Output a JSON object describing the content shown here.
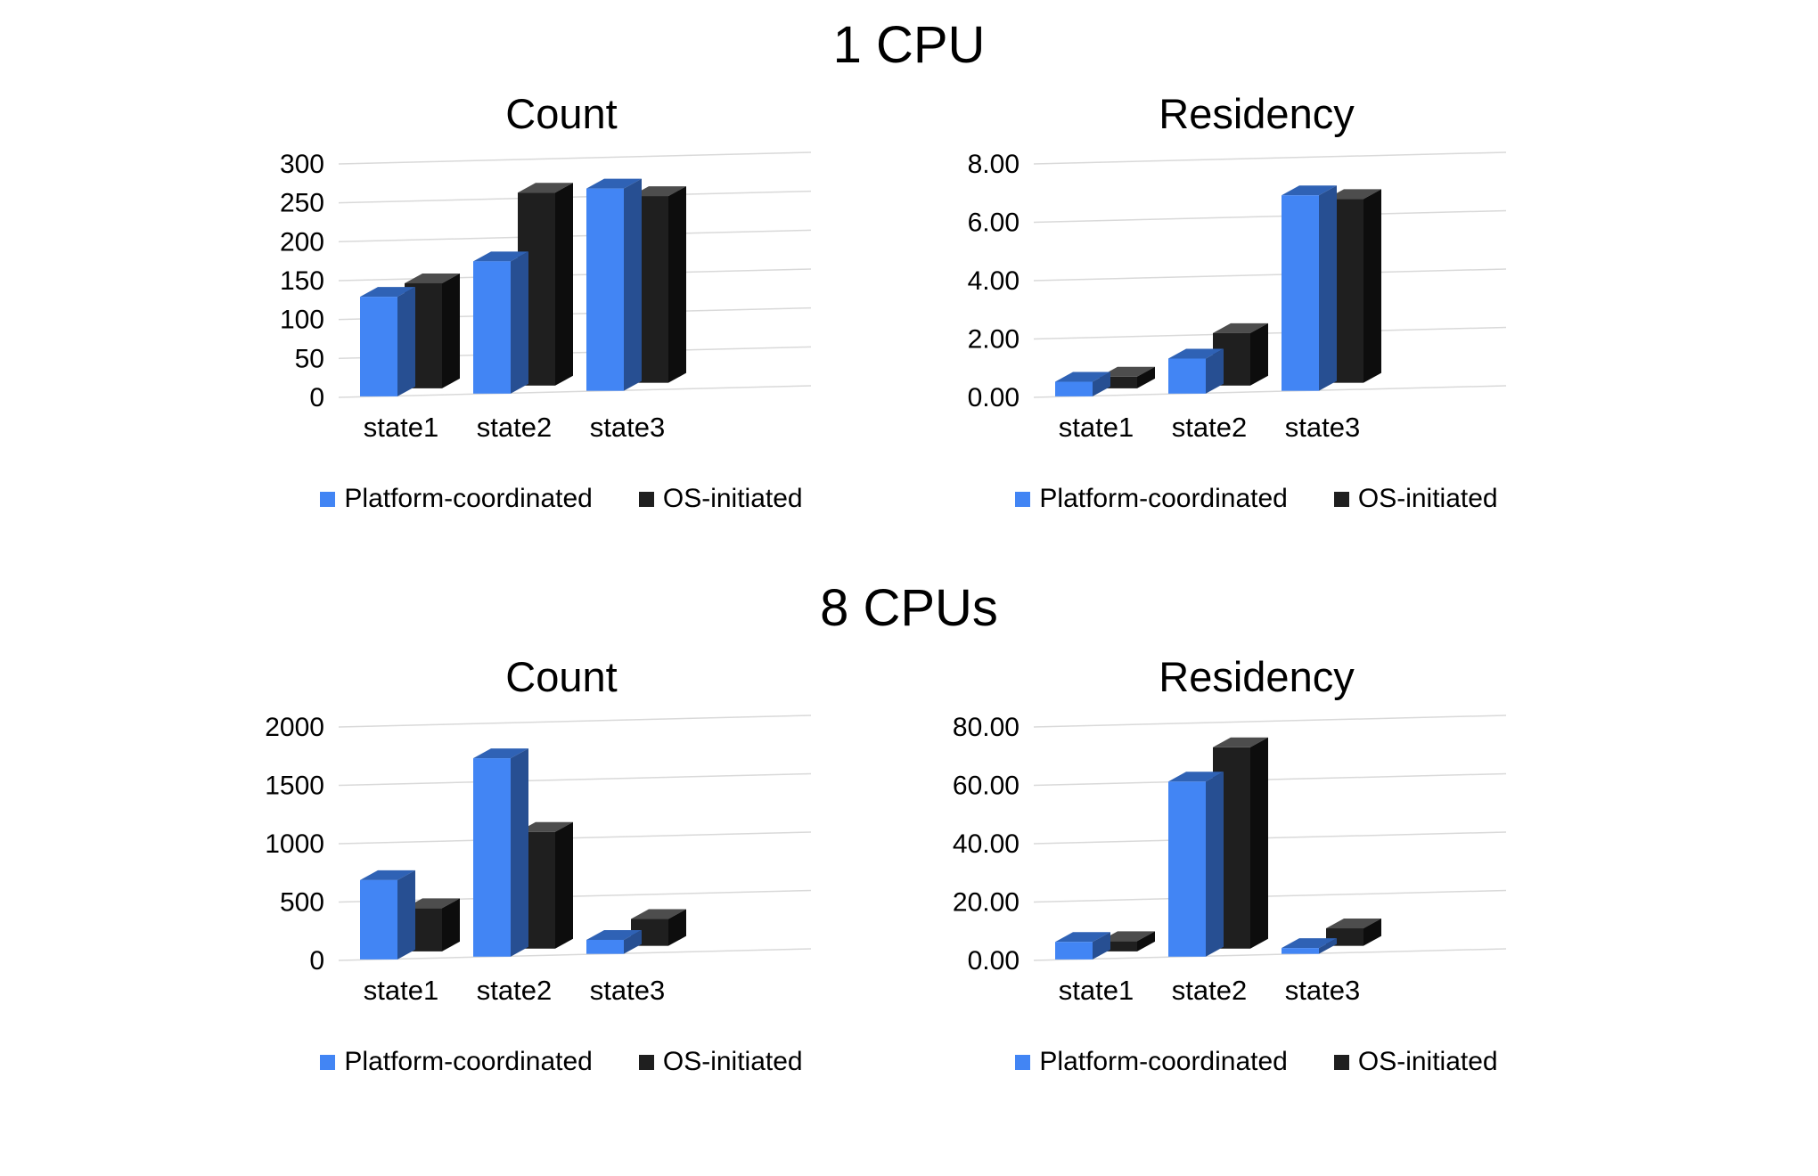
{
  "section_titles": [
    "1 CPU",
    "8 CPUs"
  ],
  "palette": {
    "platform": {
      "front": "#4285f4",
      "top": "#2f62b5",
      "side": "#274f92"
    },
    "os": {
      "front": "#1f1f1f",
      "top": "#4d4d4d",
      "side": "#0d0d0d"
    }
  },
  "chart_data": [
    {
      "type": "bar",
      "group": "1 CPU",
      "title": "Count",
      "categories": [
        "state1",
        "state2",
        "state3"
      ],
      "series": [
        {
          "name": "Platform-coordinated",
          "palette": "platform",
          "color": "#4285f4",
          "values": [
            128,
            170,
            260
          ]
        },
        {
          "name": "OS-initiated",
          "palette": "os",
          "color": "#1f1f1f",
          "values": [
            135,
            248,
            240
          ]
        }
      ],
      "xlabel": "",
      "ylabel": "",
      "ylim": [
        0,
        300
      ],
      "ytick_step": 50,
      "tick_decimals": 0,
      "grid": true,
      "legend_position": "bottom"
    },
    {
      "type": "bar",
      "group": "1 CPU",
      "title": "Residency",
      "categories": [
        "state1",
        "state2",
        "state3"
      ],
      "series": [
        {
          "name": "Platform-coordinated",
          "palette": "platform",
          "color": "#4285f4",
          "values": [
            0.5,
            1.2,
            6.7
          ]
        },
        {
          "name": "OS-initiated",
          "palette": "os",
          "color": "#1f1f1f",
          "values": [
            0.4,
            1.8,
            6.3
          ]
        }
      ],
      "xlabel": "",
      "ylabel": "",
      "ylim": [
        0,
        8
      ],
      "ytick_step": 2,
      "tick_decimals": 2,
      "grid": true,
      "legend_position": "bottom"
    },
    {
      "type": "bar",
      "group": "8 CPUs",
      "title": "Count",
      "categories": [
        "state1",
        "state2",
        "state3"
      ],
      "series": [
        {
          "name": "Platform-coordinated",
          "palette": "platform",
          "color": "#4285f4",
          "values": [
            680,
            1700,
            120
          ]
        },
        {
          "name": "OS-initiated",
          "palette": "os",
          "color": "#1f1f1f",
          "values": [
            370,
            1000,
            230
          ]
        }
      ],
      "xlabel": "",
      "ylabel": "",
      "ylim": [
        0,
        2000
      ],
      "ytick_step": 500,
      "tick_decimals": 0,
      "grid": true,
      "legend_position": "bottom"
    },
    {
      "type": "bar",
      "group": "8 CPUs",
      "title": "Residency",
      "categories": [
        "state1",
        "state2",
        "state3"
      ],
      "series": [
        {
          "name": "Platform-coordinated",
          "palette": "platform",
          "color": "#4285f4",
          "values": [
            6,
            60,
            2
          ]
        },
        {
          "name": "OS-initiated",
          "palette": "os",
          "color": "#1f1f1f",
          "values": [
            3.5,
            69,
            6
          ]
        }
      ],
      "xlabel": "",
      "ylabel": "",
      "ylim": [
        0,
        80
      ],
      "ytick_step": 20,
      "tick_decimals": 2,
      "grid": true,
      "legend_position": "bottom"
    }
  ]
}
